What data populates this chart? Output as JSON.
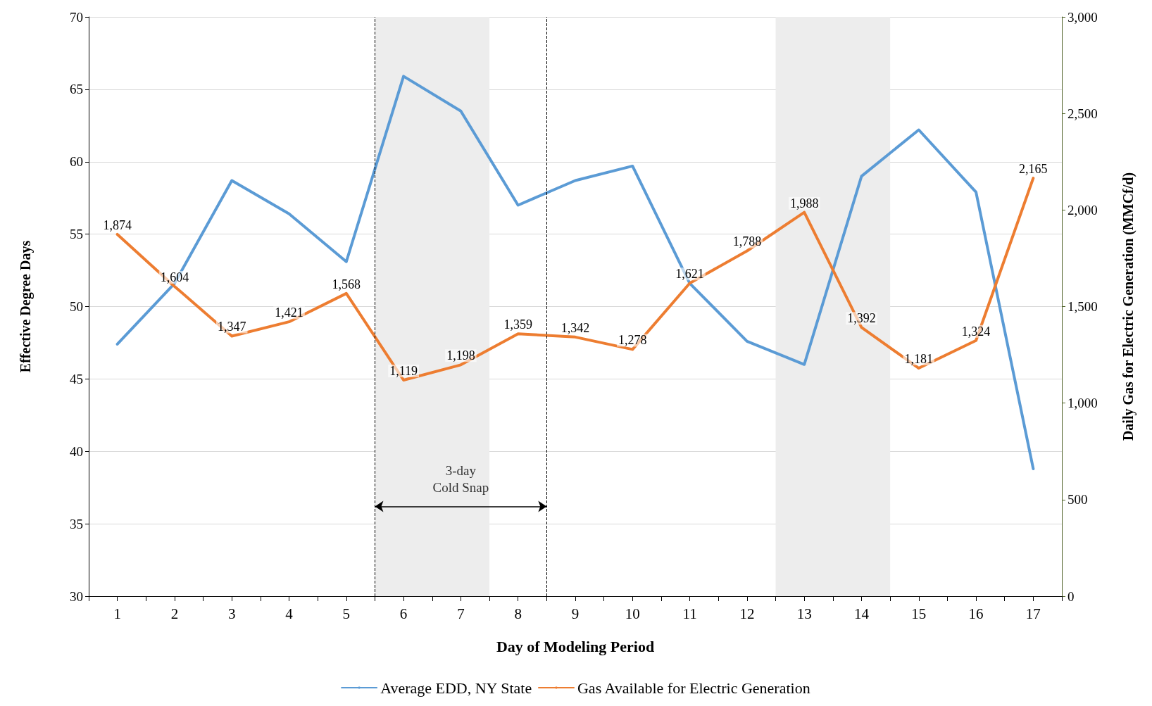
{
  "chart_data": {
    "type": "line",
    "xlabel": "Day of Modeling Period",
    "ylabel": "Effective Degree Days",
    "y2label": "Daily Gas for Electric Generation (MMCf/d)",
    "x": [
      1,
      2,
      3,
      4,
      5,
      6,
      7,
      8,
      9,
      10,
      11,
      12,
      13,
      14,
      15,
      16,
      17
    ],
    "xlim": [
      0.5,
      17.5
    ],
    "xticks": [
      {
        "value": 0.5,
        "label": null
      },
      1,
      {
        "value": 1.5,
        "label": null
      },
      2,
      {
        "value": 2.5,
        "label": null
      },
      3,
      {
        "value": 3.5,
        "label": null
      },
      4,
      {
        "value": 4.5,
        "label": null
      },
      5,
      {
        "value": 5.5,
        "label": null
      },
      6,
      {
        "value": 6.5,
        "label": null
      },
      7,
      {
        "value": 7.5,
        "label": null
      },
      8,
      {
        "value": 8.5,
        "label": null
      },
      9,
      {
        "value": 9.5,
        "label": null
      },
      10,
      {
        "value": 10.5,
        "label": null
      },
      11,
      {
        "value": 11.5,
        "label": null
      },
      12,
      {
        "value": 12.5,
        "label": null
      },
      13,
      {
        "value": 13.5,
        "label": null
      },
      14,
      {
        "value": 14.5,
        "label": null
      },
      15,
      {
        "value": 15.5,
        "label": null
      },
      16,
      {
        "value": 16.5,
        "label": null
      },
      17,
      {
        "value": 17.5,
        "label": null
      }
    ],
    "ylim": [
      30,
      70
    ],
    "yticks": [
      30,
      35,
      40,
      45,
      50,
      55,
      60,
      65,
      70
    ],
    "y2lim": [
      0,
      3000
    ],
    "y2ticks": [
      {
        "value": 0,
        "label": "0"
      },
      {
        "value": 500,
        "label": "500"
      },
      {
        "value": 1000,
        "label": "1,000"
      },
      {
        "value": 1500,
        "label": "1,500"
      },
      {
        "value": 2000,
        "label": "2,000"
      },
      {
        "value": 2500,
        "label": "2,500"
      },
      {
        "value": 3000,
        "label": "3,000"
      }
    ],
    "series": [
      {
        "name": "Average EDD, NY State",
        "color": "#5b9bd5",
        "values": [
          47.4,
          51.6,
          58.7,
          56.4,
          53.1,
          65.9,
          63.5,
          57.0,
          58.7,
          59.7,
          51.6,
          47.6,
          46.0,
          59.0,
          62.2,
          57.9,
          38.8
        ]
      },
      {
        "name": "Gas Available for Electric Generation",
        "color": "#ed7d31",
        "axis": "y2",
        "values": [
          1874,
          1604,
          1347,
          1421,
          1568,
          1119,
          1198,
          1359,
          1342,
          1278,
          1621,
          1788,
          1988,
          1392,
          1181,
          1324,
          2165
        ],
        "value_labels": [
          "1,874",
          "1,604",
          "1,347",
          "1,421",
          "1,568",
          "1,119",
          "1,198",
          "1,359",
          "1,342",
          "1,278",
          "1,621",
          "1,788",
          "1,988",
          "1,392",
          "1,181",
          "1,324",
          "2,165"
        ]
      }
    ],
    "bands": [
      {
        "axis": "x",
        "from": 5.5,
        "to": 7.5,
        "color": "#ededed"
      },
      {
        "axis": "x",
        "from": 12.5,
        "to": 14.5,
        "color": "#ededed"
      }
    ],
    "ref_lines": [
      {
        "axis": "x",
        "value": 5.5,
        "color": "#000000",
        "line_style": "dashed"
      },
      {
        "axis": "x",
        "value": 8.5,
        "color": "#000000",
        "line_style": "dashed"
      }
    ],
    "annotations": [
      "3-day\nCold Snap"
    ],
    "grid": "y",
    "legend": "bottom",
    "marker": "none",
    "line_style": "solid"
  }
}
